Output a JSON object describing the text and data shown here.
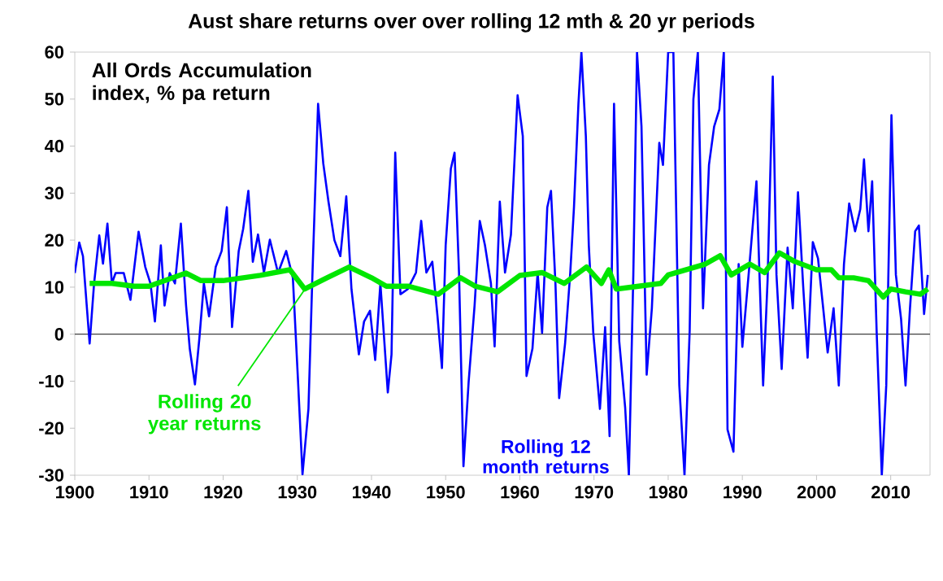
{
  "chart_data": {
    "type": "line",
    "title": "Aust share returns over over rolling 12 mth  & 20 yr periods",
    "annotations": [
      "All Ords Accumulation index, % pa return"
    ],
    "xlim": [
      1900,
      2015.3
    ],
    "xticks": [
      1900,
      1910,
      1920,
      1930,
      1940,
      1950,
      1960,
      1970,
      1980,
      1990,
      2000,
      2010
    ],
    "ylim": [
      -30,
      60
    ],
    "yticks": [
      -30,
      -20,
      -10,
      0,
      10,
      20,
      30,
      40,
      50,
      60
    ],
    "ref_lines": [
      {
        "axis": "y",
        "value": 0,
        "color": "#404040"
      }
    ],
    "series": [
      {
        "name": "Rolling 12 month returns",
        "color": "#0000ff",
        "x": [
          1900.0,
          1900.6,
          1901.1,
          1902.0,
          1902.6,
          1903.3,
          1903.8,
          1904.4,
          1905.0,
          1905.5,
          1906.6,
          1907.5,
          1908.6,
          1909.5,
          1910.2,
          1910.8,
          1911.6,
          1912.1,
          1912.8,
          1913.5,
          1914.3,
          1915.0,
          1915.5,
          1916.2,
          1916.8,
          1917.4,
          1918.1,
          1919.0,
          1919.8,
          1920.5,
          1921.2,
          1922.1,
          1922.7,
          1923.4,
          1924.0,
          1924.7,
          1925.5,
          1926.3,
          1927.4,
          1928.5,
          1929.4,
          1930.1,
          1930.7,
          1931.5,
          1932.0,
          1932.8,
          1933.5,
          1934.2,
          1935.0,
          1935.8,
          1936.6,
          1937.3,
          1938.3,
          1939.0,
          1939.8,
          1940.5,
          1941.2,
          1942.2,
          1942.7,
          1943.2,
          1943.9,
          1944.9,
          1946.0,
          1946.7,
          1947.4,
          1948.2,
          1948.9,
          1949.5,
          1950.0,
          1950.7,
          1951.2,
          1951.8,
          1952.4,
          1953.1,
          1953.9,
          1954.6,
          1955.3,
          1956.1,
          1956.6,
          1957.3,
          1958.0,
          1958.8,
          1959.7,
          1960.4,
          1960.9,
          1961.7,
          1962.4,
          1963.0,
          1963.7,
          1964.2,
          1964.8,
          1965.3,
          1966.1,
          1966.8,
          1967.3,
          1967.9,
          1968.3,
          1968.9,
          1969.3,
          1969.9,
          1970.8,
          1971.5,
          1972.1,
          1972.7,
          1973.4,
          1974.2,
          1974.7,
          1975.3,
          1975.8,
          1976.4,
          1977.1,
          1977.8,
          1978.8,
          1979.3,
          1980.0,
          1980.7,
          1981.5,
          1982.2,
          1982.9,
          1983.4,
          1984.0,
          1984.7,
          1985.5,
          1986.2,
          1986.9,
          1987.5,
          1988.0,
          1988.8,
          1989.5,
          1990.0,
          1990.9,
          1991.9,
          1992.8,
          1993.4,
          1994.1,
          1994.6,
          1995.3,
          1996.1,
          1996.8,
          1997.5,
          1998.2,
          1998.8,
          1999.5,
          2000.2,
          2000.9,
          2001.5,
          2002.3,
          2003.0,
          2003.7,
          2004.4,
          2005.2,
          2005.9,
          2006.4,
          2007.0,
          2007.5,
          2008.1,
          2008.8,
          2009.4,
          2010.1,
          2010.7,
          2011.4,
          2012.0,
          2012.6,
          2013.3,
          2013.8,
          2014.5,
          2015.0
        ],
        "values": [
          13,
          19.5,
          16.6,
          -2,
          10.8,
          21,
          15,
          23.5,
          10.8,
          13,
          13,
          7.3,
          21.8,
          14.3,
          10.8,
          2.7,
          18.9,
          6.1,
          13,
          10.8,
          23.5,
          6.1,
          -3.1,
          -10.7,
          -0.8,
          10.8,
          3.8,
          14.3,
          17.7,
          27,
          1.5,
          17.7,
          22.4,
          30.5,
          15.4,
          21.2,
          13.1,
          20.1,
          13,
          17.7,
          12,
          -10.1,
          -29.8,
          -15.9,
          10.8,
          49,
          36.3,
          28.2,
          20,
          16.6,
          29.3,
          9.6,
          -4.3,
          2.7,
          5,
          -5.5,
          10.8,
          -12.4,
          -4.3,
          38.6,
          8.5,
          9.6,
          13.1,
          24.1,
          13.1,
          15.4,
          3.8,
          -7.2,
          18.9,
          35.2,
          38.6,
          13.1,
          -28.1,
          -10.1,
          6.1,
          24.1,
          18.9,
          10.8,
          -2.6,
          28.2,
          13.1,
          21.2,
          50.8,
          42.1,
          -8.9,
          -3.1,
          13.1,
          0.3,
          27,
          30.5,
          10.8,
          -13.6,
          -2,
          13.1,
          27,
          49,
          60,
          42.1,
          18.9,
          0.3,
          -15.9,
          1.5,
          -21.7,
          49,
          -1.5,
          -15.6,
          -30,
          12.6,
          60,
          44.2,
          -8.6,
          5.5,
          40.7,
          36,
          60,
          60,
          -10.9,
          -30,
          0.8,
          50,
          60,
          5.5,
          36,
          44.2,
          47.8,
          60,
          -20.3,
          -25,
          14.9,
          -2.7,
          13.7,
          32.5,
          -10.9,
          11.4,
          54.8,
          12.6,
          -7.4,
          18.4,
          5.5,
          30.2,
          10.2,
          -5,
          19.6,
          16.1,
          5.5,
          -3.9,
          5.5,
          -10.9,
          14.9,
          27.8,
          21.9,
          26.6,
          37.2,
          21.9,
          32.5,
          0.8,
          -30,
          -10.9,
          46.6,
          12.6,
          3.2,
          -10.9,
          5.5,
          21.9,
          23.1,
          4.3,
          12.6
        ]
      },
      {
        "name": "Rolling 20 year returns",
        "color": "#00e600",
        "x": [
          1902,
          1905,
          1908,
          1910,
          1915,
          1917,
          1920,
          1925,
          1929,
          1931,
          1934,
          1937,
          1940,
          1942,
          1945,
          1949,
          1952,
          1954,
          1957,
          1960,
          1963,
          1966,
          1969,
          1971,
          1972,
          1973,
          1976,
          1979,
          1980,
          1985,
          1987,
          1988.5,
          1991,
          1993,
          1995,
          1997,
          2000,
          2002,
          2003,
          2005,
          2007,
          2009,
          2010,
          2012,
          2014,
          2015
        ],
        "values": [
          10.8,
          10.8,
          10.2,
          10.2,
          13,
          11.4,
          11.4,
          12.5,
          13.7,
          9.6,
          12,
          14.3,
          12,
          10.2,
          10.2,
          8.5,
          12,
          10.2,
          9,
          12.5,
          13.1,
          10.8,
          14.3,
          10.8,
          13.7,
          9.6,
          10.2,
          10.8,
          12.6,
          14.9,
          16.7,
          12.6,
          14.9,
          13.1,
          17.3,
          15.5,
          13.7,
          13.7,
          12,
          12,
          11.4,
          7.9,
          9.6,
          9,
          8.5,
          9.6
        ]
      }
    ]
  }
}
